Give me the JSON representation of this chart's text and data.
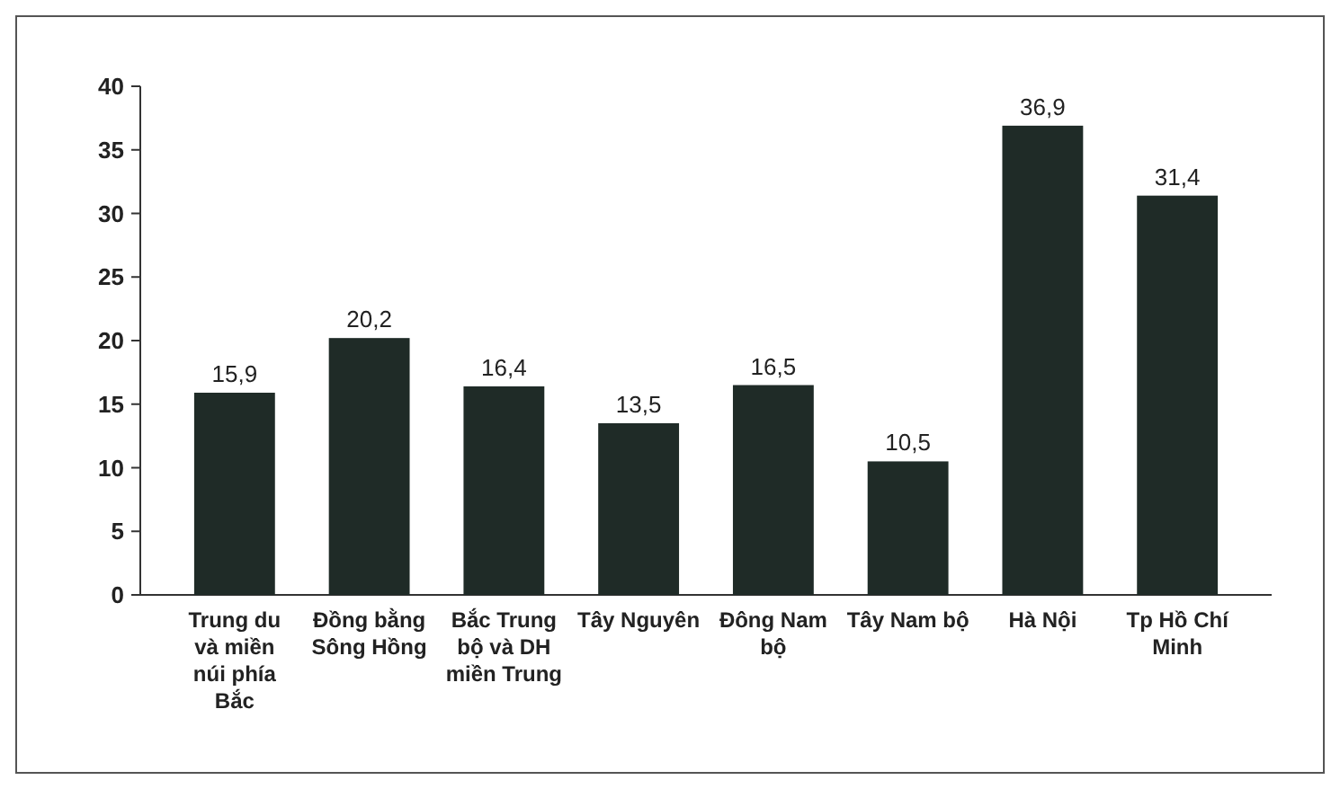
{
  "chart_data": {
    "type": "bar",
    "categories": [
      "Trung du và miền núi phía Bắc",
      "Đồng bằng Sông Hồng",
      "Bắc Trung bộ và DH miền Trung",
      "Tây Nguyên",
      "Đông Nam bộ",
      "Tây Nam bộ",
      "Hà Nội",
      "Tp Hồ Chí Minh"
    ],
    "values": [
      15.9,
      20.2,
      16.4,
      13.5,
      16.5,
      10.5,
      36.9,
      31.4
    ],
    "value_labels": [
      "15,9",
      "20,2",
      "16,4",
      "13,5",
      "16,5",
      "10,5",
      "36,9",
      "31,4"
    ],
    "color": "#1f2b27",
    "ylim": [
      0,
      40
    ],
    "yticks": [
      0,
      5,
      10,
      15,
      20,
      25,
      30,
      35,
      40
    ]
  }
}
